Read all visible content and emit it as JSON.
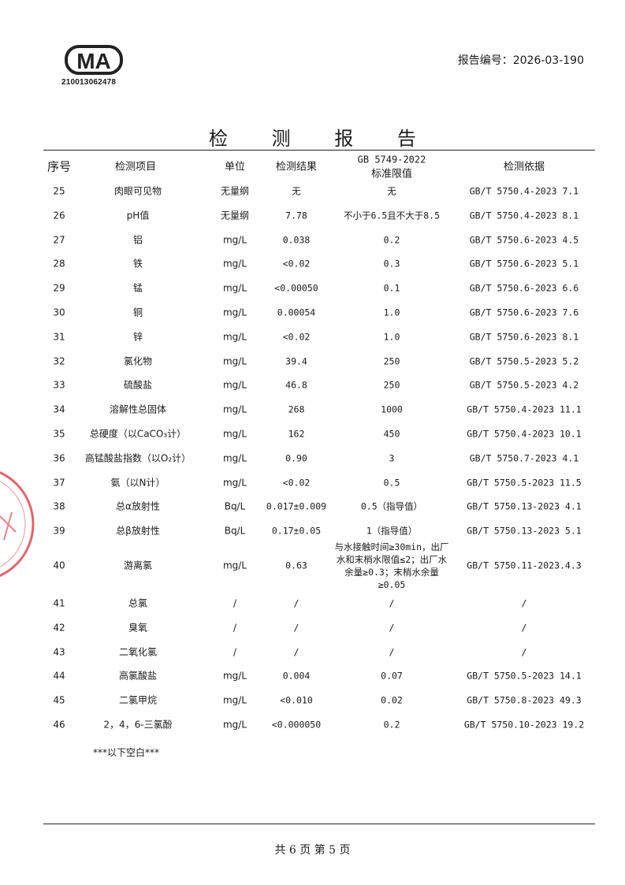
{
  "header": {
    "logo_text": "CMA",
    "cma_number": "210013062478",
    "report_number": "报告编号：2026-03-190"
  },
  "title": "检 测 报 告",
  "table": {
    "columns": [
      "序号",
      "检测项目",
      "单位",
      "检测结果",
      "GB 5749-2022",
      "标准限值",
      "检测依据"
    ],
    "rows": [
      {
        "no": "25",
        "item": "肉眼可见物",
        "unit": "无量纲",
        "result": "无",
        "limit": "无",
        "method": "GB/T 5750.4-2023 7.1"
      },
      {
        "no": "26",
        "item": "pH值",
        "unit": "无量纲",
        "result": "7.78",
        "limit": "不小于6.5且不大于8.5",
        "method": "GB/T 5750.4-2023 8.1"
      },
      {
        "no": "27",
        "item": "铝",
        "unit": "mg/L",
        "result": "0.038",
        "limit": "0.2",
        "method": "GB/T 5750.6-2023 4.5"
      },
      {
        "no": "28",
        "item": "铁",
        "unit": "mg/L",
        "result": "<0.02",
        "limit": "0.3",
        "method": "GB/T 5750.6-2023 5.1"
      },
      {
        "no": "29",
        "item": "锰",
        "unit": "mg/L",
        "result": "<0.00050",
        "limit": "0.1",
        "method": "GB/T 5750.6-2023 6.6"
      },
      {
        "no": "30",
        "item": "铜",
        "unit": "mg/L",
        "result": "0.00054",
        "limit": "1.0",
        "method": "GB/T 5750.6-2023 7.6"
      },
      {
        "no": "31",
        "item": "锌",
        "unit": "mg/L",
        "result": "<0.02",
        "limit": "1.0",
        "method": "GB/T 5750.6-2023 8.1"
      },
      {
        "no": "32",
        "item": "氯化物",
        "unit": "mg/L",
        "result": "39.4",
        "limit": "250",
        "method": "GB/T 5750.5-2023 5.2"
      },
      {
        "no": "33",
        "item": "硫酸盐",
        "unit": "mg/L",
        "result": "46.8",
        "limit": "250",
        "method": "GB/T 5750.5-2023 4.2"
      },
      {
        "no": "34",
        "item": "溶解性总固体",
        "unit": "mg/L",
        "result": "268",
        "limit": "1000",
        "method": "GB/T 5750.4-2023 11.1"
      },
      {
        "no": "35",
        "item": "总硬度（以CaCO₃计）",
        "unit": "mg/L",
        "result": "162",
        "limit": "450",
        "method": "GB/T 5750.4-2023 10.1"
      },
      {
        "no": "36",
        "item": "高锰酸盐指数（以O₂计）",
        "unit": "mg/L",
        "result": "0.90",
        "limit": "3",
        "method": "GB/T 5750.7-2023 4.1"
      },
      {
        "no": "37",
        "item": "氨（以N计）",
        "unit": "mg/L",
        "result": "<0.02",
        "limit": "0.5",
        "method": "GB/T 5750.5-2023 11.5"
      },
      {
        "no": "38",
        "item": "总α放射性",
        "unit": "Bq/L",
        "result": "0.017±0.009",
        "limit": "0.5（指导值）",
        "method": "GB/T 5750.13-2023 4.1"
      },
      {
        "no": "39",
        "item": "总β放射性",
        "unit": "Bq/L",
        "result": "0.17±0.05",
        "limit": "1（指导值）",
        "method": "GB/T 5750.13-2023 5.1"
      },
      {
        "no": "40",
        "item": "游离氯",
        "unit": "mg/L",
        "result": "0.63",
        "limit": "与水接触时间≥30min，出厂水和末梢水限值≤2；出厂水余量≥0.3；末梢水余量≥0.05",
        "method": "GB/T 5750.11-2023.4.3"
      },
      {
        "no": "41",
        "item": "总氯",
        "unit": "/",
        "result": "/",
        "limit": "/",
        "method": "/"
      },
      {
        "no": "42",
        "item": "臭氧",
        "unit": "/",
        "result": "/",
        "limit": "/",
        "method": "/"
      },
      {
        "no": "43",
        "item": "二氧化氯",
        "unit": "/",
        "result": "/",
        "limit": "/",
        "method": "/"
      },
      {
        "no": "44",
        "item": "高氯酸盐",
        "unit": "mg/L",
        "result": "0.004",
        "limit": "0.07",
        "method": "GB/T 5750.5-2023 14.1"
      },
      {
        "no": "45",
        "item": "二氯甲烷",
        "unit": "mg/L",
        "result": "<0.010",
        "limit": "0.02",
        "method": "GB/T 5750.8-2023 49.3"
      },
      {
        "no": "46",
        "item": "2，4，6-三氯酚",
        "unit": "mg/L",
        "result": "<0.000050",
        "limit": "0.2",
        "method": "GB/T 5750.10-2023 19.2"
      }
    ],
    "end_note": "***以下空白***"
  },
  "footer": {
    "page_info": "共 6 页    第 5 页"
  },
  "colors": {
    "text": "#1a1a1a",
    "stamp": "#d9303a"
  }
}
